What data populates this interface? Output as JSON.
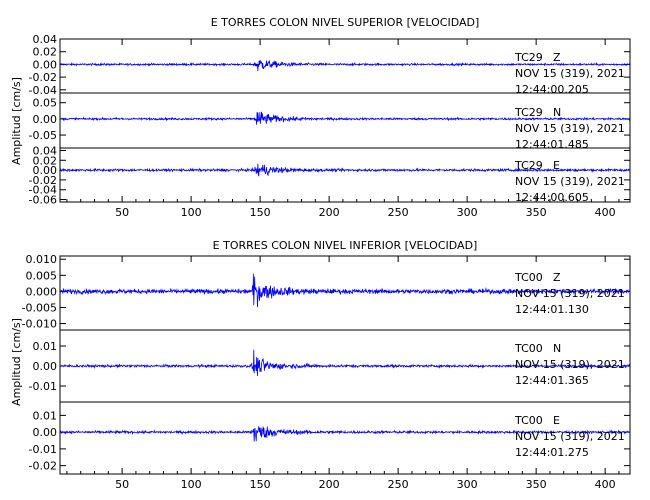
{
  "chart_data": [
    {
      "type": "line",
      "title": "E TORRES COLON NIVEL SUPERIOR [VELOCIDAD]",
      "ylabel": "Amplitud [cm/s]",
      "xlim": [
        5,
        418
      ],
      "x_ticks": [
        "50",
        "100",
        "150",
        "200",
        "250",
        "300",
        "350",
        "400"
      ],
      "x_tick_values": [
        50,
        100,
        150,
        200,
        250,
        300,
        350,
        400
      ],
      "series": [
        {
          "station": "TC29",
          "component": "Z",
          "date": "NOV 15 (319), 2021",
          "time": "12:44:00.205",
          "ylim": [
            -0.045,
            0.04
          ],
          "y_ticks": [
            "0.04",
            "0.02",
            "0.00",
            "-0.02",
            "-0.04"
          ],
          "y_tick_values": [
            0.04,
            0.02,
            0.0,
            -0.02,
            -0.04
          ],
          "event_x": 147,
          "peak": 0.028,
          "noise": 0.0025
        },
        {
          "station": "TC29",
          "component": "N",
          "date": "NOV 15 (319), 2021",
          "time": "12:44:01.485",
          "ylim": [
            -0.09,
            0.08
          ],
          "y_ticks": [
            "0.05",
            "0.00",
            "-0.05"
          ],
          "y_tick_values": [
            0.05,
            0.0,
            -0.05
          ],
          "event_x": 147,
          "peak": 0.065,
          "noise": 0.005
        },
        {
          "station": "TC29",
          "component": "E",
          "date": "NOV 15 (319), 2021",
          "time": "12:44:00.605",
          "ylim": [
            -0.065,
            0.045
          ],
          "y_ticks": [
            "0.04",
            "0.02",
            "0.00",
            "-0.02",
            "-0.04",
            "-0.06"
          ],
          "y_tick_values": [
            0.04,
            0.02,
            0.0,
            -0.02,
            -0.04,
            -0.06
          ],
          "event_x": 147,
          "peak": 0.038,
          "noise": 0.004
        }
      ]
    },
    {
      "type": "line",
      "title": "E TORRES COLON NIVEL INFERIOR [VELOCIDAD]",
      "ylabel": "Amplitud [cm/s]",
      "xlim": [
        5,
        418
      ],
      "x_ticks": [
        "50",
        "100",
        "150",
        "200",
        "250",
        "300",
        "350",
        "400"
      ],
      "x_tick_values": [
        50,
        100,
        150,
        200,
        250,
        300,
        350,
        400
      ],
      "series": [
        {
          "station": "TC00",
          "component": "Z",
          "date": "NOV 15 (319), 2021",
          "time": "12:44:01.130",
          "ylim": [
            -0.012,
            0.011
          ],
          "y_ticks": [
            "0.010",
            "0.005",
            "0.000",
            "-0.005",
            "-0.010"
          ],
          "y_tick_values": [
            0.01,
            0.005,
            0.0,
            -0.005,
            -0.01
          ],
          "event_x": 145,
          "peak": 0.0095,
          "noise": 0.0012
        },
        {
          "station": "TC00",
          "component": "N",
          "date": "NOV 15 (319), 2021",
          "time": "12:44:01.365",
          "ylim": [
            -0.018,
            0.018
          ],
          "y_ticks": [
            "0.01",
            "0.00",
            "-0.01"
          ],
          "y_tick_values": [
            0.01,
            0.0,
            -0.01
          ],
          "event_x": 145,
          "peak": 0.012,
          "noise": 0.001
        },
        {
          "station": "TC00",
          "component": "E",
          "date": "NOV 15 (319), 2021",
          "time": "12:44:01.275",
          "ylim": [
            -0.025,
            0.018
          ],
          "y_ticks": [
            "0.01",
            "0.00",
            "-0.01",
            "-0.02"
          ],
          "y_tick_values": [
            0.01,
            0.0,
            -0.01,
            -0.02
          ],
          "event_x": 145,
          "peak": 0.016,
          "noise": 0.0012
        }
      ]
    }
  ]
}
